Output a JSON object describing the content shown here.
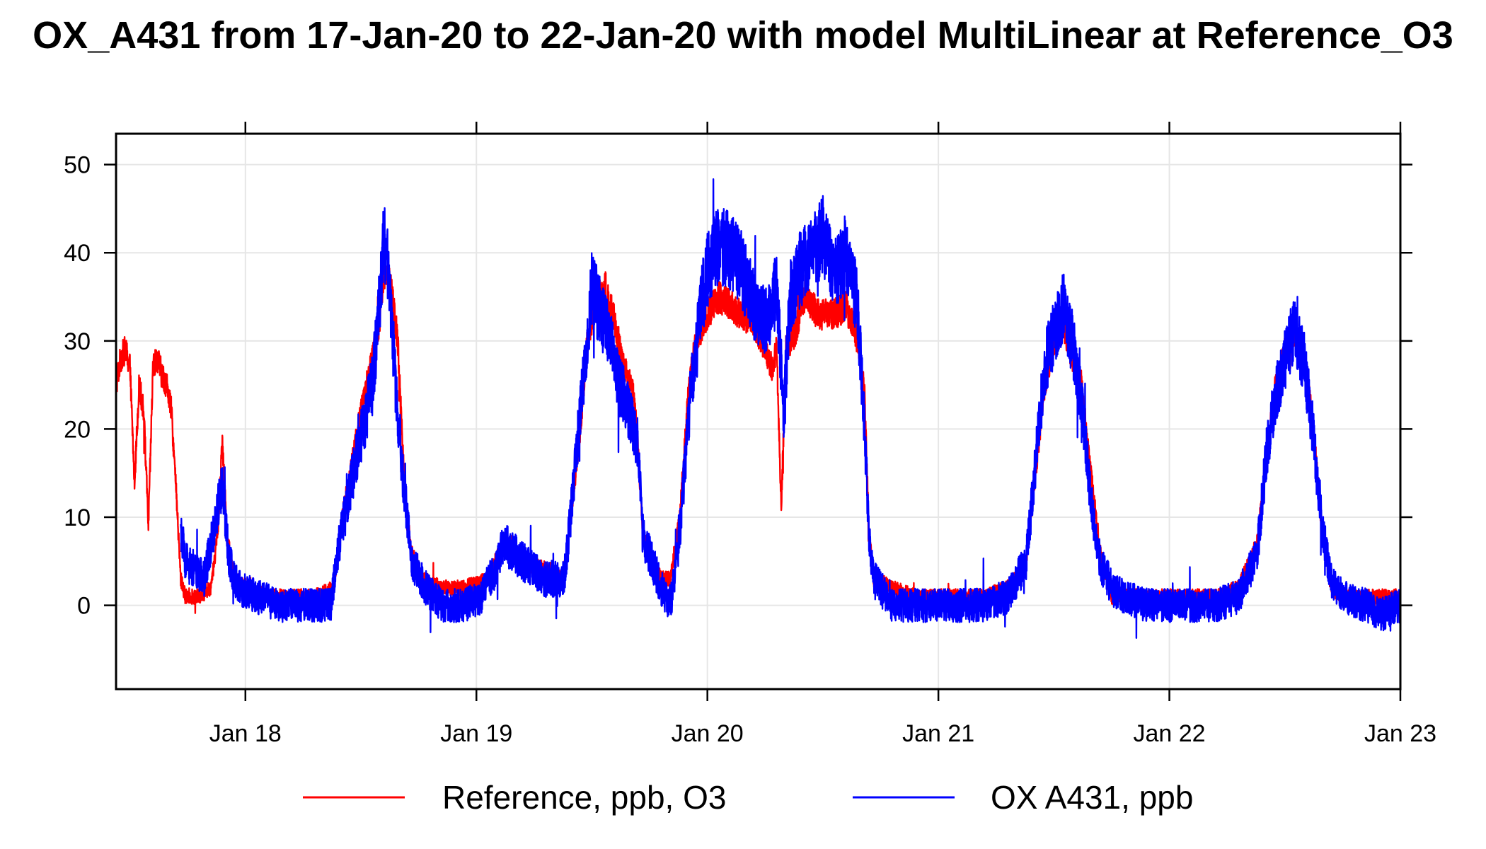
{
  "chart_data": {
    "type": "line",
    "title": "OX_A431 from 17-Jan-20 to 22-Jan-20 with model MultiLinear at Reference_O3",
    "xlabel": "",
    "ylabel": "",
    "x_unit": "days since Jan 17 00:00",
    "xlim": [
      0.44,
      6.0
    ],
    "ylim": [
      -9.5,
      53.5
    ],
    "grid": true,
    "legend_position": "bottom",
    "x_ticks": [
      {
        "value": 1,
        "label": "Jan 18"
      },
      {
        "value": 2,
        "label": "Jan 19"
      },
      {
        "value": 3,
        "label": "Jan 20"
      },
      {
        "value": 4,
        "label": "Jan 21"
      },
      {
        "value": 5,
        "label": "Jan 22"
      },
      {
        "value": 6,
        "label": "Jan 23"
      }
    ],
    "y_ticks": [
      {
        "value": 0,
        "label": "0"
      },
      {
        "value": 10,
        "label": "10"
      },
      {
        "value": 20,
        "label": "20"
      },
      {
        "value": 30,
        "label": "30"
      },
      {
        "value": 40,
        "label": "40"
      },
      {
        "value": 50,
        "label": "50"
      }
    ],
    "series": [
      {
        "name": "Reference, ppb, O3",
        "color": "#ff0000",
        "noise": 1.4,
        "points": [
          [
            0.44,
            25
          ],
          [
            0.46,
            28
          ],
          [
            0.48,
            29
          ],
          [
            0.5,
            27
          ],
          [
            0.52,
            14
          ],
          [
            0.54,
            25
          ],
          [
            0.56,
            22
          ],
          [
            0.58,
            9
          ],
          [
            0.6,
            27
          ],
          [
            0.62,
            28
          ],
          [
            0.64,
            26
          ],
          [
            0.66,
            25
          ],
          [
            0.68,
            22
          ],
          [
            0.7,
            13
          ],
          [
            0.72,
            3
          ],
          [
            0.74,
            1
          ],
          [
            0.8,
            1
          ],
          [
            0.85,
            2
          ],
          [
            0.88,
            8
          ],
          [
            0.9,
            19
          ],
          [
            0.92,
            8
          ],
          [
            0.95,
            3
          ],
          [
            1.0,
            2
          ],
          [
            1.1,
            1
          ],
          [
            1.2,
            1
          ],
          [
            1.3,
            1
          ],
          [
            1.38,
            2
          ],
          [
            1.42,
            10
          ],
          [
            1.46,
            16
          ],
          [
            1.5,
            22
          ],
          [
            1.55,
            28
          ],
          [
            1.58,
            32
          ],
          [
            1.6,
            38
          ],
          [
            1.63,
            36
          ],
          [
            1.66,
            30
          ],
          [
            1.68,
            18
          ],
          [
            1.7,
            10
          ],
          [
            1.72,
            6
          ],
          [
            1.76,
            3
          ],
          [
            1.85,
            2
          ],
          [
            1.95,
            2
          ],
          [
            2.05,
            3
          ],
          [
            2.1,
            6
          ],
          [
            2.15,
            7
          ],
          [
            2.2,
            5
          ],
          [
            2.3,
            4
          ],
          [
            2.38,
            3
          ],
          [
            2.4,
            8
          ],
          [
            2.45,
            20
          ],
          [
            2.48,
            30
          ],
          [
            2.52,
            35
          ],
          [
            2.56,
            36
          ],
          [
            2.6,
            32
          ],
          [
            2.64,
            27
          ],
          [
            2.68,
            24
          ],
          [
            2.7,
            18
          ],
          [
            2.72,
            8
          ],
          [
            2.76,
            5
          ],
          [
            2.8,
            3
          ],
          [
            2.84,
            3
          ],
          [
            2.88,
            10
          ],
          [
            2.92,
            25
          ],
          [
            2.95,
            30
          ],
          [
            3.0,
            33
          ],
          [
            3.05,
            35
          ],
          [
            3.1,
            34
          ],
          [
            3.15,
            33
          ],
          [
            3.2,
            32
          ],
          [
            3.25,
            29
          ],
          [
            3.28,
            27
          ],
          [
            3.3,
            29
          ],
          [
            3.32,
            11
          ],
          [
            3.34,
            29
          ],
          [
            3.38,
            31
          ],
          [
            3.42,
            35
          ],
          [
            3.48,
            33
          ],
          [
            3.55,
            33
          ],
          [
            3.6,
            34
          ],
          [
            3.65,
            30
          ],
          [
            3.68,
            24
          ],
          [
            3.7,
            8
          ],
          [
            3.72,
            3
          ],
          [
            3.8,
            2
          ],
          [
            3.9,
            1
          ],
          [
            4.0,
            1
          ],
          [
            4.1,
            1
          ],
          [
            4.2,
            1
          ],
          [
            4.3,
            2
          ],
          [
            4.38,
            5
          ],
          [
            4.42,
            15
          ],
          [
            4.46,
            25
          ],
          [
            4.5,
            30
          ],
          [
            4.54,
            32
          ],
          [
            4.58,
            28
          ],
          [
            4.62,
            25
          ],
          [
            4.66,
            15
          ],
          [
            4.7,
            6
          ],
          [
            4.75,
            1
          ],
          [
            4.8,
            1
          ],
          [
            4.9,
            1
          ],
          [
            5.0,
            1
          ],
          [
            5.1,
            1
          ],
          [
            5.2,
            1
          ],
          [
            5.3,
            2
          ],
          [
            5.38,
            7
          ],
          [
            5.42,
            17
          ],
          [
            5.46,
            25
          ],
          [
            5.5,
            29
          ],
          [
            5.54,
            31
          ],
          [
            5.58,
            28
          ],
          [
            5.62,
            21
          ],
          [
            5.66,
            9
          ],
          [
            5.7,
            2
          ],
          [
            5.75,
            1
          ],
          [
            5.85,
            1
          ],
          [
            5.92,
            1
          ],
          [
            6.0,
            1
          ]
        ]
      },
      {
        "name": "OX A431, ppb",
        "color": "#0000ff",
        "noise": 3.2,
        "points": [
          [
            0.72,
            9
          ],
          [
            0.74,
            5
          ],
          [
            0.78,
            4
          ],
          [
            0.82,
            3
          ],
          [
            0.86,
            8
          ],
          [
            0.9,
            14
          ],
          [
            0.93,
            5
          ],
          [
            0.97,
            2
          ],
          [
            1.05,
            1
          ],
          [
            1.15,
            0
          ],
          [
            1.25,
            0
          ],
          [
            1.32,
            0
          ],
          [
            1.37,
            0
          ],
          [
            1.4,
            6
          ],
          [
            1.45,
            13
          ],
          [
            1.5,
            19
          ],
          [
            1.55,
            25
          ],
          [
            1.58,
            34
          ],
          [
            1.6,
            42
          ],
          [
            1.62,
            38
          ],
          [
            1.65,
            25
          ],
          [
            1.68,
            15
          ],
          [
            1.72,
            5
          ],
          [
            1.78,
            2
          ],
          [
            1.85,
            0
          ],
          [
            1.95,
            0
          ],
          [
            2.02,
            1
          ],
          [
            2.08,
            4
          ],
          [
            2.12,
            7
          ],
          [
            2.16,
            6
          ],
          [
            2.2,
            5
          ],
          [
            2.3,
            3
          ],
          [
            2.38,
            3
          ],
          [
            2.4,
            8
          ],
          [
            2.45,
            22
          ],
          [
            2.48,
            30
          ],
          [
            2.5,
            36
          ],
          [
            2.54,
            33
          ],
          [
            2.58,
            30
          ],
          [
            2.62,
            25
          ],
          [
            2.66,
            22
          ],
          [
            2.7,
            18
          ],
          [
            2.72,
            8
          ],
          [
            2.76,
            5
          ],
          [
            2.8,
            2
          ],
          [
            2.84,
            0
          ],
          [
            2.88,
            8
          ],
          [
            2.92,
            22
          ],
          [
            2.96,
            32
          ],
          [
            3.0,
            38
          ],
          [
            3.05,
            41
          ],
          [
            3.1,
            40
          ],
          [
            3.15,
            38
          ],
          [
            3.2,
            34
          ],
          [
            3.25,
            32
          ],
          [
            3.3,
            36
          ],
          [
            3.33,
            22
          ],
          [
            3.36,
            35
          ],
          [
            3.4,
            38
          ],
          [
            3.45,
            40
          ],
          [
            3.5,
            42
          ],
          [
            3.55,
            38
          ],
          [
            3.6,
            40
          ],
          [
            3.65,
            34
          ],
          [
            3.68,
            20
          ],
          [
            3.7,
            8
          ],
          [
            3.72,
            3
          ],
          [
            3.8,
            0
          ],
          [
            3.9,
            0
          ],
          [
            4.0,
            0
          ],
          [
            4.1,
            0
          ],
          [
            4.2,
            0
          ],
          [
            4.3,
            1
          ],
          [
            4.38,
            5
          ],
          [
            4.42,
            16
          ],
          [
            4.46,
            27
          ],
          [
            4.5,
            31
          ],
          [
            4.54,
            34
          ],
          [
            4.58,
            30
          ],
          [
            4.62,
            23
          ],
          [
            4.66,
            12
          ],
          [
            4.7,
            5
          ],
          [
            4.75,
            2
          ],
          [
            4.8,
            1
          ],
          [
            4.9,
            0
          ],
          [
            5.0,
            0
          ],
          [
            5.1,
            0
          ],
          [
            5.2,
            0
          ],
          [
            5.3,
            1
          ],
          [
            5.38,
            6
          ],
          [
            5.42,
            17
          ],
          [
            5.46,
            24
          ],
          [
            5.5,
            28
          ],
          [
            5.54,
            31
          ],
          [
            5.58,
            28
          ],
          [
            5.62,
            20
          ],
          [
            5.66,
            9
          ],
          [
            5.7,
            3
          ],
          [
            5.75,
            1
          ],
          [
            5.85,
            0
          ],
          [
            5.92,
            -1
          ],
          [
            6.0,
            0
          ]
        ]
      }
    ],
    "legend": [
      {
        "label": "Reference, ppb, O3",
        "color": "#ff0000"
      },
      {
        "label": "OX A431, ppb",
        "color": "#0000ff"
      }
    ]
  }
}
